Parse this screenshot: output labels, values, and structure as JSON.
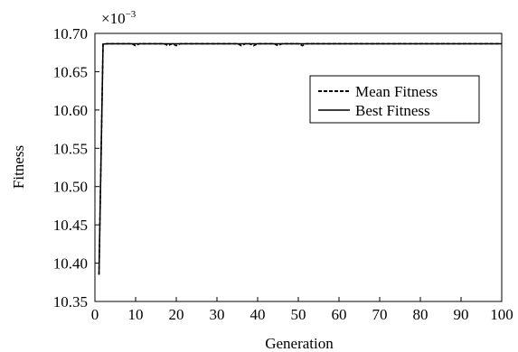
{
  "chart_data": {
    "type": "line",
    "title": "",
    "xlabel": "Generation",
    "ylabel": "Fitness",
    "y_multiplier_label": "×10",
    "y_multiplier_exponent": "−3",
    "xlim": [
      0,
      100
    ],
    "ylim": [
      10.35,
      10.7
    ],
    "xticks": [
      0,
      10,
      20,
      30,
      40,
      50,
      60,
      70,
      80,
      90,
      100
    ],
    "yticks": [
      "10.70",
      "10.65",
      "10.60",
      "10.55",
      "10.50",
      "10.45",
      "10.40",
      "10.35"
    ],
    "ytick_values": [
      10.7,
      10.65,
      10.6,
      10.55,
      10.5,
      10.45,
      10.4,
      10.35
    ],
    "legend_position": "top-right",
    "series": [
      {
        "name": "Mean Fitness",
        "style": "dashed",
        "color": "#000000",
        "x": [
          1,
          2,
          3,
          4,
          5,
          6,
          7,
          8,
          9,
          10,
          11,
          12,
          13,
          14,
          15,
          16,
          17,
          18,
          19,
          20,
          21,
          22,
          23,
          24,
          25,
          26,
          27,
          28,
          29,
          30,
          31,
          32,
          33,
          34,
          35,
          36,
          37,
          38,
          39,
          40,
          41,
          42,
          43,
          44,
          45,
          46,
          47,
          48,
          49,
          50,
          51,
          52,
          53,
          54,
          55,
          56,
          57,
          58,
          59,
          60,
          61,
          62,
          63,
          64,
          65,
          66,
          67,
          68,
          69,
          70,
          71,
          72,
          73,
          74,
          75,
          76,
          77,
          78,
          79,
          80,
          81,
          82,
          83,
          84,
          85,
          86,
          87,
          88,
          89,
          90,
          91,
          92,
          93,
          94,
          95,
          96,
          97,
          98,
          99,
          100
        ],
        "y": [
          10.385,
          10.686,
          10.6865,
          10.6865,
          10.6865,
          10.6865,
          10.6865,
          10.6865,
          10.6865,
          10.684,
          10.6865,
          10.6865,
          10.6865,
          10.6865,
          10.6865,
          10.6865,
          10.6865,
          10.684,
          10.6865,
          10.684,
          10.6865,
          10.6865,
          10.6865,
          10.6865,
          10.6865,
          10.6865,
          10.6865,
          10.6865,
          10.6865,
          10.6865,
          10.6865,
          10.6865,
          10.6865,
          10.6865,
          10.6865,
          10.684,
          10.6865,
          10.6865,
          10.684,
          10.6865,
          10.6865,
          10.6865,
          10.6865,
          10.6865,
          10.684,
          10.6865,
          10.6865,
          10.6865,
          10.6865,
          10.6865,
          10.684,
          10.6865,
          10.6865,
          10.6865,
          10.6865,
          10.6865,
          10.6865,
          10.6865,
          10.6865,
          10.6865,
          10.6865,
          10.6865,
          10.6865,
          10.6865,
          10.6865,
          10.6865,
          10.6865,
          10.6865,
          10.6865,
          10.6865,
          10.6865,
          10.6865,
          10.6865,
          10.6865,
          10.6865,
          10.6865,
          10.6865,
          10.6865,
          10.6865,
          10.6865,
          10.6865,
          10.6865,
          10.6865,
          10.6865,
          10.6865,
          10.6865,
          10.6865,
          10.6865,
          10.6865,
          10.6865,
          10.6865,
          10.6865,
          10.6865,
          10.6865,
          10.6865,
          10.6865,
          10.6865,
          10.6865,
          10.6865,
          10.6865
        ]
      },
      {
        "name": "Best Fitness",
        "style": "solid",
        "color": "#000000",
        "x": [
          1,
          2,
          3,
          100
        ],
        "y": [
          10.385,
          10.686,
          10.6865,
          10.6865
        ]
      }
    ]
  }
}
